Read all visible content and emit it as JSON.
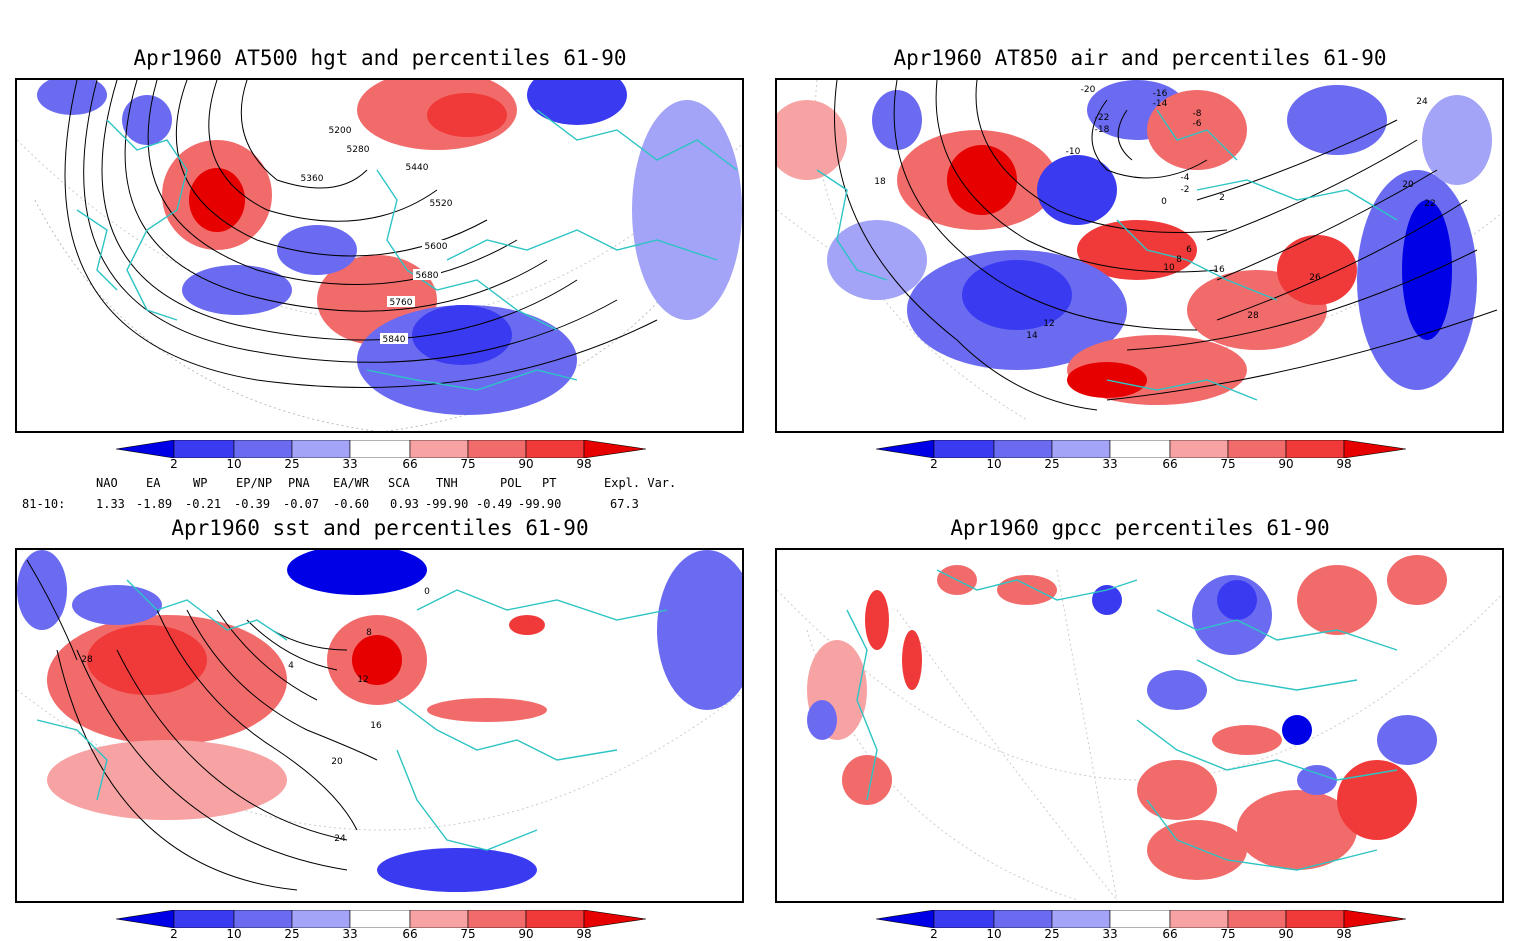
{
  "panels": [
    {
      "title": "Apr1960 AT500 hgt and percentiles 61-90",
      "contour_labels": [
        "5200",
        "5280",
        "5360",
        "5440",
        "5520",
        "5600",
        "5680",
        "5760",
        "5840"
      ]
    },
    {
      "title": "Apr1960 AT850 air and percentiles 61-90",
      "contour_labels": [
        "-20",
        "-16",
        "-14",
        "-22",
        "-18",
        "-8",
        "-6",
        "-10",
        "-4",
        "-2",
        "0",
        "2",
        "6",
        "8",
        "10",
        "12",
        "14",
        "16",
        "18",
        "20",
        "22",
        "24",
        "26",
        "28"
      ]
    },
    {
      "title": "Apr1960 sst and percentiles 61-90",
      "contour_labels": [
        "0",
        "4",
        "8",
        "12",
        "16",
        "20",
        "24",
        "28"
      ]
    },
    {
      "title": "Apr1960 gpcc percentiles 61-90",
      "contour_labels": []
    }
  ],
  "colorbar": {
    "labels": [
      "2",
      "10",
      "25",
      "33",
      "66",
      "75",
      "90",
      "98"
    ],
    "colors": [
      "#0000e6",
      "#3a3af0",
      "#6b6bf2",
      "#a3a3f7",
      "#ffffff",
      "#f7a3a3",
      "#f26b6b",
      "#f03a3a",
      "#e60000"
    ]
  },
  "indices": {
    "header": [
      "NAO",
      "EA",
      "WP",
      "EP/NP",
      "PNA",
      "EA/WR",
      "SCA",
      "TNH",
      "POL",
      "PT",
      "Expl. Var."
    ],
    "row_label": "81-10:",
    "values": [
      "1.33",
      "-1.89",
      "-0.21",
      "-0.39",
      "-0.07",
      "-0.60",
      "0.93",
      "-99.90",
      "-0.49",
      "-99.90",
      "67.3"
    ]
  }
}
